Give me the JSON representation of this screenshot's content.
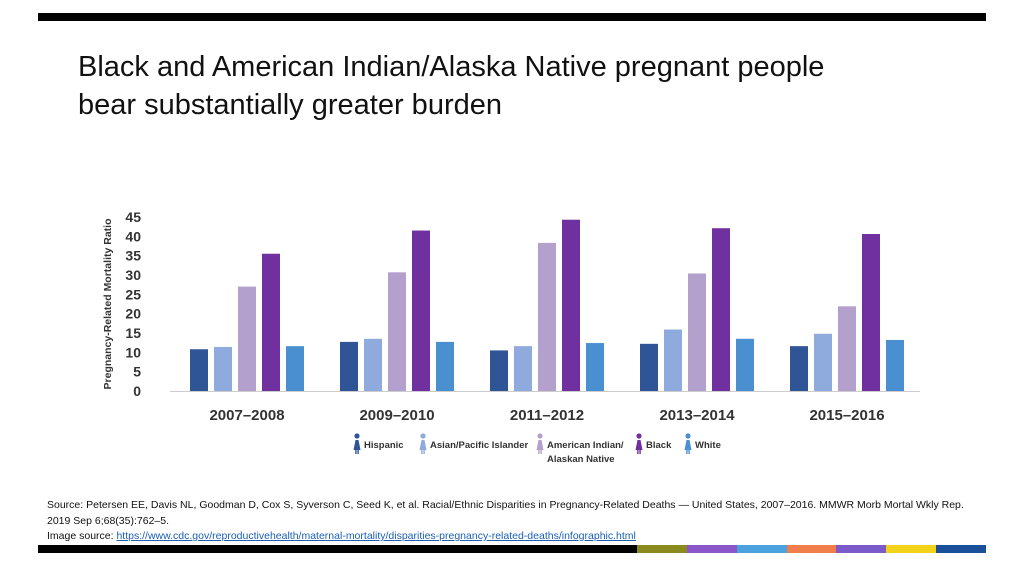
{
  "slide": {
    "title_line1": "Black and American Indian/Alaska Native pregnant people",
    "title_line2": "bear substantially greater burden",
    "source_text": "Source: Petersen EE, Davis NL, Goodman D, Cox S, Syverson C, Seed K, et al. Racial/Ethnic Disparities in Pregnancy-Related Deaths — United States, 2007–2016. MMWR Morb Mortal Wkly Rep. 2019 Sep 6;68(35):762–5.",
    "image_source_label": "Image source: ",
    "image_source_url": "https://www.cdc.gov/reproductivehealth/maternal-mortality/disparities-pregnancy-related-deaths/infographic.html",
    "stripe_colors": [
      "#8a8a1f",
      "#8a55c8",
      "#4aa3df",
      "#f07d4a",
      "#7b5bc9",
      "#f2d21b",
      "#1a4f99"
    ]
  },
  "chart_data": {
    "type": "bar",
    "title": "",
    "xlabel": "",
    "ylabel": "Pregnancy-Related Mortality Ratio",
    "ylim": [
      0,
      45
    ],
    "yticks": [
      0,
      5,
      10,
      15,
      20,
      25,
      30,
      35,
      40,
      45
    ],
    "grid": false,
    "legend_position": "bottom",
    "categories": [
      "2007–2008",
      "2009–2010",
      "2011–2012",
      "2013–2014",
      "2015–2016"
    ],
    "series": [
      {
        "name": "Hispanic",
        "color": "#2f5597",
        "values": [
          10.8,
          12.7,
          10.5,
          12.2,
          11.6
        ]
      },
      {
        "name": "Asian/Pacific Islander",
        "color": "#8faadc",
        "values": [
          11.4,
          13.5,
          11.6,
          15.9,
          14.8
        ]
      },
      {
        "name": "American Indian/ Alaskan Native",
        "color": "#b4a0cc",
        "values": [
          27.0,
          30.7,
          38.3,
          30.4,
          21.9
        ]
      },
      {
        "name": "Black",
        "color": "#7030a0",
        "values": [
          35.5,
          41.5,
          44.3,
          42.1,
          40.6
        ]
      },
      {
        "name": "White",
        "color": "#4a90d0",
        "values": [
          11.6,
          12.7,
          12.4,
          13.5,
          13.2
        ]
      }
    ]
  }
}
